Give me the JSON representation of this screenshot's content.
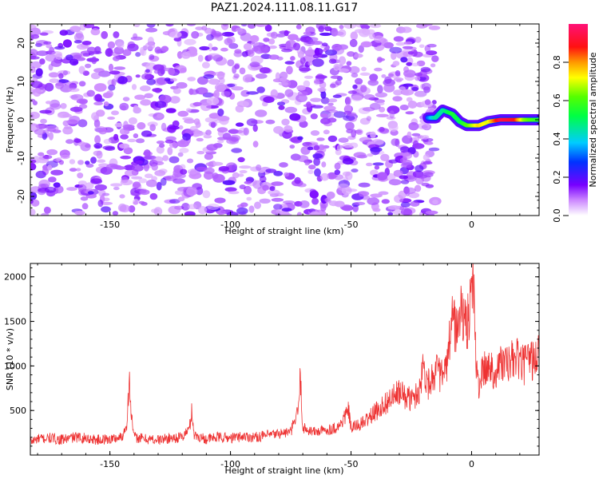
{
  "title": "PAZ1.2024.111.08.11.G17",
  "chart_data": [
    {
      "type": "heatmap",
      "xlabel": "Height of straight line (km)",
      "ylabel": "Frequency (Hz)",
      "xlim": [
        -183,
        28
      ],
      "ylim": [
        -25,
        25
      ],
      "x_ticks": [
        -150,
        -100,
        -50,
        0
      ],
      "y_ticks": [
        -20,
        -10,
        0,
        10,
        20
      ],
      "colorbar": {
        "label": "Normalized spectral amplitude",
        "range": [
          0,
          1
        ],
        "ticks": [
          "0.0",
          "0.2",
          "0.4",
          "0.6",
          "0.8"
        ],
        "colormap": "gist_rainbow_r"
      },
      "noise_region": {
        "x_range": [
          -183,
          -15
        ],
        "y_range": [
          -25,
          25
        ],
        "level": 0.3
      },
      "signal_trace": [
        {
          "x": -18,
          "y": 0.5,
          "amplitude": 0.3
        },
        {
          "x": -15,
          "y": 0.5,
          "amplitude": 0.45
        },
        {
          "x": -12,
          "y": 2.5,
          "amplitude": 0.45
        },
        {
          "x": -8,
          "y": 1.5,
          "amplitude": 0.55
        },
        {
          "x": -5,
          "y": -0.5,
          "amplitude": 0.5
        },
        {
          "x": -2,
          "y": -1.5,
          "amplitude": 0.6
        },
        {
          "x": 3,
          "y": -1.5,
          "amplitude": 0.75
        },
        {
          "x": 7,
          "y": -0.5,
          "amplitude": 0.7
        },
        {
          "x": 12,
          "y": 0,
          "amplitude": 0.95
        },
        {
          "x": 18,
          "y": 0,
          "amplitude": 0.9
        },
        {
          "x": 22,
          "y": 0,
          "amplitude": 0.65
        },
        {
          "x": 28,
          "y": 0,
          "amplitude": 0.55
        }
      ]
    },
    {
      "type": "line",
      "xlabel": "Height of straight line (km)",
      "ylabel": "SNR (10 * v/v)",
      "xlim": [
        -183,
        28
      ],
      "ylim": [
        0,
        2150
      ],
      "x_ticks": [
        -150,
        -100,
        -50,
        0
      ],
      "y_ticks": [
        500,
        1000,
        1500,
        2000
      ],
      "line_color": "#ee3333",
      "series": [
        {
          "x": [
            -183,
            -180,
            -175,
            -170,
            -165,
            -160,
            -155,
            -150,
            -145,
            -143,
            -142,
            -141,
            -140,
            -135,
            -130,
            -125,
            -120,
            -117,
            -116,
            -115,
            -110,
            -105,
            -100,
            -95,
            -90,
            -85,
            -80,
            -75,
            -72,
            -71,
            -70,
            -65,
            -60,
            -55,
            -51,
            -50,
            -45,
            -40,
            -35,
            -30,
            -25,
            -22,
            -20,
            -18,
            -15,
            -12,
            -10,
            -8,
            -6,
            -4,
            -3,
            -1,
            0,
            1,
            2,
            3,
            5,
            8,
            10,
            12,
            15,
            18,
            20,
            22,
            24,
            26,
            28
          ],
          "y": [
            150,
            180,
            190,
            170,
            200,
            190,
            170,
            180,
            200,
            350,
            850,
            420,
            200,
            180,
            170,
            190,
            200,
            300,
            500,
            220,
            180,
            200,
            190,
            210,
            200,
            220,
            240,
            260,
            480,
            880,
            300,
            260,
            280,
            320,
            500,
            300,
            360,
            480,
            600,
            700,
            620,
            700,
            1000,
            800,
            950,
            880,
            1000,
            1600,
            1350,
            1700,
            1400,
            1550,
            2100,
            1800,
            900,
            800,
            950,
            1000,
            900,
            1050,
            1000,
            1100,
            1050,
            1000,
            1100,
            1050,
            1150
          ]
        }
      ]
    }
  ]
}
